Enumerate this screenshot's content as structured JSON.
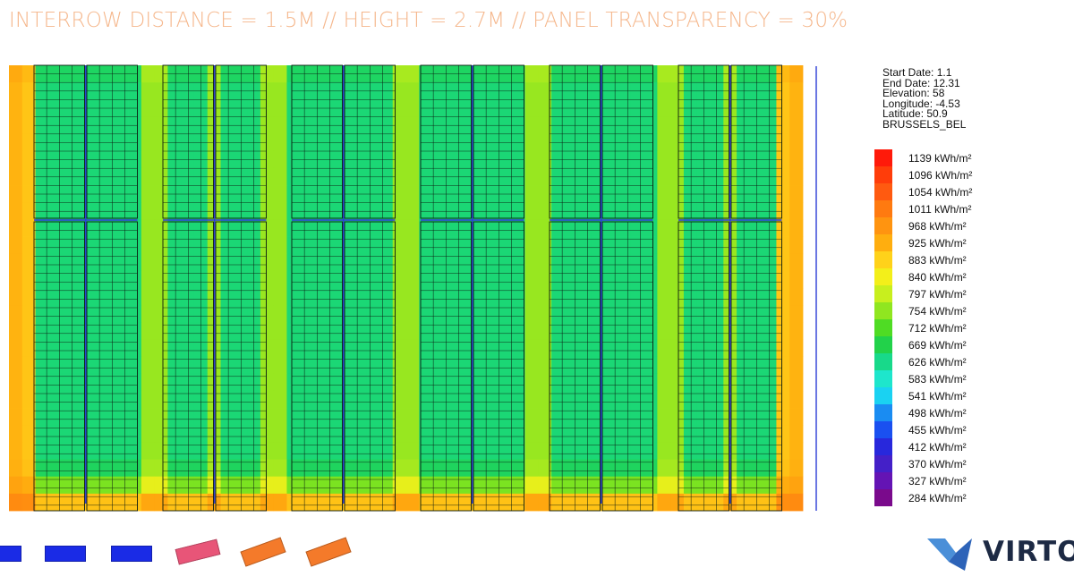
{
  "header": {
    "title": "INTERROW DISTANCE = 1.5M // HEIGHT = 2.7M // PANEL TRANSPARENCY = 30%"
  },
  "info": {
    "lines": [
      "Start Date: 1.1",
      "End Date: 12.31",
      "Elevation: 58",
      "Longitude: -4.53",
      "Latitude: 50.9",
      "BRUSSELS_BEL"
    ]
  },
  "legend": {
    "unit": "kWh/m²",
    "entries": [
      {
        "label": "1139 kWh/m²",
        "color": "#ff1a0a"
      },
      {
        "label": "1096 kWh/m²",
        "color": "#ff3d0a"
      },
      {
        "label": "1054 kWh/m²",
        "color": "#ff5a10"
      },
      {
        "label": "1011 kWh/m²",
        "color": "#ff7a10"
      },
      {
        "label": "968 kWh/m²",
        "color": "#ff9410"
      },
      {
        "label": "925 kWh/m²",
        "color": "#ffae0f"
      },
      {
        "label": "883 kWh/m²",
        "color": "#ffd21a"
      },
      {
        "label": "840 kWh/m²",
        "color": "#f3ef1a"
      },
      {
        "label": "797 kWh/m²",
        "color": "#c8ef1e"
      },
      {
        "label": "754 kWh/m²",
        "color": "#90e620"
      },
      {
        "label": "712 kWh/m²",
        "color": "#4fdc24"
      },
      {
        "label": "669 kWh/m²",
        "color": "#22d24a"
      },
      {
        "label": "626 kWh/m²",
        "color": "#18d98a"
      },
      {
        "label": "583 kWh/m²",
        "color": "#1ee6cc"
      },
      {
        "label": "541 kWh/m²",
        "color": "#1ad2f2"
      },
      {
        "label": "498 kWh/m²",
        "color": "#1a8cf2"
      },
      {
        "label": "455 kWh/m²",
        "color": "#1a50f0"
      },
      {
        "label": "412 kWh/m²",
        "color": "#2828dc"
      },
      {
        "label": "370 kWh/m²",
        "color": "#4420c8"
      },
      {
        "label": "327 kWh/m²",
        "color": "#6414b4"
      },
      {
        "label": "284 kWh/m²",
        "color": "#7a0a8c"
      }
    ]
  },
  "chart_data": {
    "type": "heatmap",
    "title": "INTERROW DISTANCE = 1.5M // HEIGHT = 2.7M // PANEL TRANSPARENCY = 30%",
    "unit": "kWh/m²",
    "scale_min": 284,
    "scale_max": 1139,
    "grid": {
      "columns": 60,
      "rows": 26
    },
    "panel_columns": 12,
    "panel_row_blocks": 2,
    "field": {
      "edge_value": 930,
      "bottom_value": 1010,
      "between_rows_value": 760,
      "under_panel_value": 640
    }
  },
  "footer": {
    "thumbnails": [
      {
        "name": "thumb-1",
        "color": "#1a2be6"
      },
      {
        "name": "thumb-2",
        "color": "#1a2be6"
      },
      {
        "name": "thumb-3",
        "color": "#1a2be6"
      },
      {
        "name": "thumb-4",
        "color": "#e85578"
      },
      {
        "name": "thumb-5",
        "color": "#f47a2a"
      },
      {
        "name": "thumb-6",
        "color": "#f47a2a"
      }
    ]
  },
  "brand": {
    "name": "VIRTO",
    "color": "#1d2a44",
    "mark_color": "#4a8fd8"
  }
}
